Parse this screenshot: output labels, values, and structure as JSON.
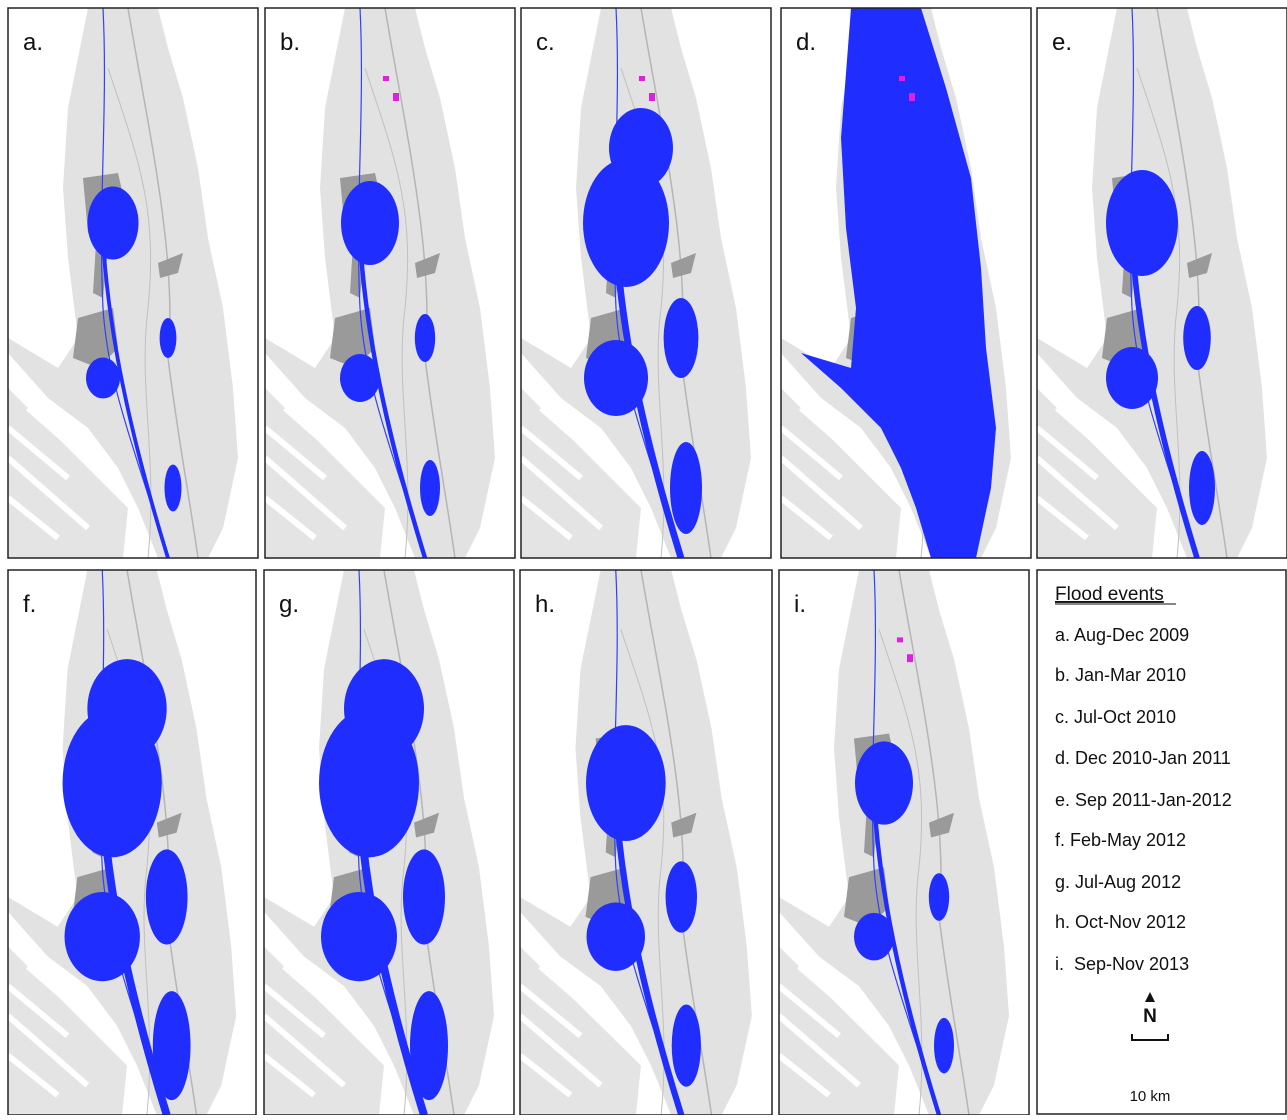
{
  "panels": [
    {
      "label": "a."
    },
    {
      "label": "b."
    },
    {
      "label": "c."
    },
    {
      "label": "d."
    },
    {
      "label": "e."
    },
    {
      "label": "f."
    },
    {
      "label": "g."
    },
    {
      "label": "h."
    },
    {
      "label": "i."
    }
  ],
  "legend": {
    "title": "Flood events",
    "items": [
      "a. Aug-Dec 2009",
      "b. Jan-Mar 2010",
      "c. Jul-Oct 2010",
      "d. Dec 2010-Jan 2011",
      "e. Sep 2011-Jan-2012",
      "f. Feb-May 2012",
      "g. Jul-Aug 2012",
      "h. Oct-Nov 2012",
      "i.  Sep-Nov 2013"
    ]
  },
  "north_arrow": "N",
  "scale_bar": "10 km"
}
